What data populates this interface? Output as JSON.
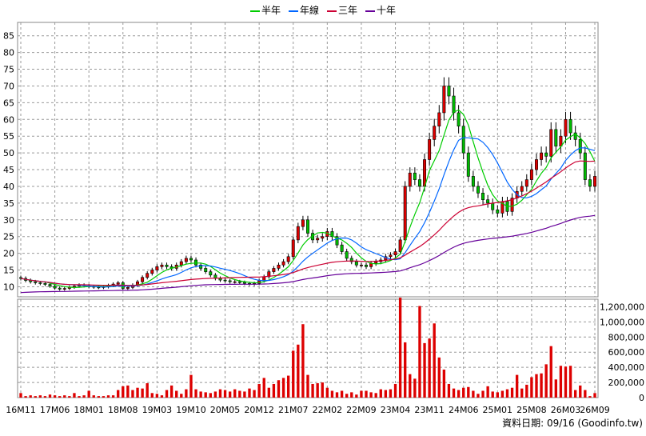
{
  "chart_data": {
    "type": "candlestick",
    "price_axis": {
      "ticks": [
        10,
        15,
        20,
        25,
        30,
        35,
        40,
        45,
        50,
        55,
        60,
        65,
        70,
        75,
        80,
        85
      ],
      "ylim": [
        7,
        89
      ],
      "side": "left",
      "grid": true
    },
    "volume_axis": {
      "ticks": [
        "0",
        "200,000",
        "400,000",
        "600,000",
        "800,000",
        "1,000,000",
        "1,200,000"
      ],
      "tick_values": [
        0,
        200000,
        400000,
        600000,
        800000,
        1000000,
        1200000
      ],
      "ylim": [
        0,
        1300000
      ],
      "side": "right",
      "grid": true
    },
    "x_tick_labels": [
      "16M11",
      "17M06",
      "18M01",
      "18M08",
      "19M03",
      "19M10",
      "20M05",
      "20M12",
      "21M07",
      "22M02",
      "22M09",
      "23M04",
      "23M11",
      "24M06",
      "25M01",
      "25M08",
      "26M03",
      "26M09"
    ],
    "x_tick_index": [
      0,
      7,
      14,
      21,
      28,
      35,
      42,
      49,
      56,
      63,
      70,
      77,
      84,
      91,
      98,
      105,
      112,
      118
    ],
    "months": 119,
    "legend": [
      {
        "name": "半年",
        "color": "#00cc00"
      },
      {
        "name": "年線",
        "color": "#0066ff"
      },
      {
        "name": "三年",
        "color": "#cc0033"
      },
      {
        "name": "十年",
        "color": "#660099"
      }
    ],
    "close": [
      12.5,
      11.9,
      11.5,
      11.2,
      11.0,
      10.7,
      10.2,
      9.6,
      9.3,
      9.5,
      9.9,
      10.2,
      10.5,
      10.3,
      10.1,
      9.9,
      9.8,
      10.0,
      10.4,
      10.8,
      11.2,
      9.5,
      9.8,
      10.5,
      11.5,
      12.8,
      14.0,
      15.0,
      16.0,
      16.5,
      16.0,
      15.5,
      16.5,
      17.5,
      18.5,
      18.0,
      16.5,
      15.5,
      14.5,
      13.5,
      12.5,
      12.0,
      11.8,
      11.5,
      11.5,
      11.3,
      11.0,
      10.8,
      11.0,
      11.8,
      13.0,
      14.5,
      15.5,
      16.5,
      17.5,
      19.0,
      24.0,
      28.0,
      30.0,
      26.0,
      24.0,
      24.5,
      25.0,
      26.5,
      25.0,
      22.5,
      20.5,
      18.5,
      17.5,
      16.5,
      16.5,
      16.0,
      17.0,
      17.5,
      18.0,
      19.0,
      19.5,
      20.5,
      24.0,
      40.0,
      44.0,
      42.0,
      40.0,
      48.0,
      54.0,
      58.0,
      62.0,
      70.0,
      67.0,
      62.0,
      58.0,
      50.0,
      43.0,
      40.0,
      38.0,
      36.0,
      35.0,
      33.0,
      32.0,
      35.5,
      32.5,
      36.5,
      38.5,
      40.0,
      42.0,
      45.0,
      48.0,
      50.0,
      49.0,
      57.0,
      52.0,
      55.0,
      60.0,
      56.0,
      54.0,
      50.0,
      42.0,
      40.0,
      43.0
    ],
    "volume": [
      60000,
      20000,
      30000,
      20000,
      30000,
      20000,
      40000,
      30000,
      20000,
      30000,
      20000,
      60000,
      20000,
      30000,
      90000,
      30000,
      20000,
      20000,
      30000,
      30000,
      100000,
      150000,
      160000,
      100000,
      130000,
      120000,
      190000,
      60000,
      50000,
      30000,
      100000,
      160000,
      90000,
      50000,
      110000,
      300000,
      110000,
      80000,
      70000,
      60000,
      80000,
      110000,
      100000,
      80000,
      110000,
      90000,
      80000,
      120000,
      100000,
      180000,
      260000,
      130000,
      180000,
      230000,
      260000,
      290000,
      620000,
      700000,
      970000,
      300000,
      180000,
      190000,
      200000,
      130000,
      90000,
      70000,
      90000,
      50000,
      70000,
      40000,
      90000,
      90000,
      70000,
      60000,
      110000,
      100000,
      110000,
      180000,
      1320000,
      730000,
      310000,
      250000,
      1210000,
      720000,
      780000,
      980000,
      530000,
      370000,
      180000,
      120000,
      100000,
      130000,
      140000,
      90000,
      50000,
      90000,
      150000,
      80000,
      70000,
      90000,
      110000,
      130000,
      300000,
      120000,
      170000,
      270000,
      310000,
      320000,
      440000,
      680000,
      240000,
      420000,
      410000,
      420000,
      100000,
      160000,
      100000,
      20000,
      60000
    ]
  }
}
